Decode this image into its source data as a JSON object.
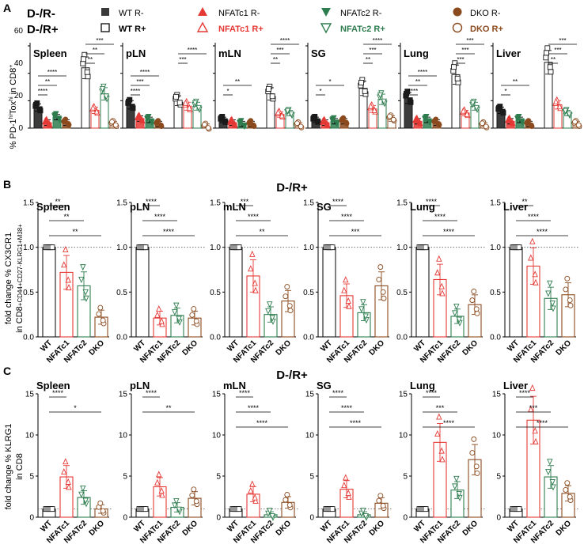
{
  "colors": {
    "wt": "#1a1a1a",
    "c1": "#e53935",
    "c2": "#2e7d4f",
    "dko": "#8b4a1e"
  },
  "panels": {
    "a": "A",
    "b": "B",
    "c": "C"
  },
  "legend": {
    "row_minus_label": "D-/R-",
    "row_plus_label": "D-/R+",
    "entries": [
      {
        "key": "wt",
        "minus": "WT R-",
        "plus": "WT R+"
      },
      {
        "key": "c1",
        "minus": "NFATc1 R-",
        "plus": "NFATc1 R+"
      },
      {
        "key": "c2",
        "minus": "NFATc2 R-",
        "plus": "NFATc2 R+"
      },
      {
        "key": "dko",
        "minus": "DKO R-",
        "plus": "DKO R+"
      }
    ]
  },
  "panel_a": {
    "ylabel_main": "% PD-1",
    "ylabel_sup1": "hi",
    "ylabel_mid": "Tox",
    "ylabel_sup2": "hi",
    "ylabel_end": " in CD8",
    "ylabel_sup3": "+",
    "yticks": [
      "0",
      "20",
      "40",
      "60"
    ]
  },
  "panel_b": {
    "header": "D-/R+",
    "ylabel_line1": "fold change % CX3CR1",
    "ylabel_line2": "in CD8",
    "ylabel_parts": "+CD44+CD27-KLRG1+M38+",
    "yticks": [
      "0.0",
      "0.5",
      "1.0",
      "1.5"
    ]
  },
  "panel_c": {
    "header": "D-/R+",
    "ylabel_line1": "fold change % KLRG1",
    "ylabel_line2": "in CD8",
    "yticks": [
      "0",
      "5",
      "10",
      "15"
    ]
  },
  "groups": [
    "WT",
    "NFATc1",
    "NFATc2",
    "DKO"
  ],
  "chart_data": [
    {
      "type": "bar",
      "panel": "A",
      "ylabel": "% PD-1hiToxhi in CD8+",
      "ylim": [
        0,
        60
      ],
      "facets": [
        {
          "title": "Spleen",
          "series": [
            {
              "name": "R-",
              "values": [
                15,
                4,
                8,
                4
              ]
            },
            {
              "name": "R+",
              "values": [
                44,
                13,
                25,
                3
              ]
            }
          ],
          "stars": [
            {
              "pair": "WT R- vs NFATc1 R-",
              "text": "****"
            },
            {
              "pair": "WT R- vs NFATc2 R-",
              "text": "**"
            },
            {
              "pair": "WT R- vs DKO R-",
              "text": "****"
            },
            {
              "pair": "WT R+ vs NFATc1 R+",
              "text": "**"
            },
            {
              "pair": "WT R+ vs NFATc2 R+",
              "text": "**"
            },
            {
              "pair": "WT R+ vs DKO R+",
              "text": "***"
            }
          ]
        },
        {
          "title": "pLN",
          "series": [
            {
              "name": "R-",
              "values": [
                17,
                7,
                6,
                3
              ]
            },
            {
              "name": "R+",
              "values": [
                20,
                16,
                16,
                1
              ]
            }
          ],
          "stars": [
            {
              "pair": "WT R- vs NFATc1 R-",
              "text": "****"
            },
            {
              "pair": "WT R- vs NFATc2 R-",
              "text": "***"
            },
            {
              "pair": "WT R- vs DKO R-",
              "text": "****"
            },
            {
              "pair": "WT R+ vs NFATc1 R+",
              "text": "***"
            },
            {
              "pair": "WT R+ vs DKO R+",
              "text": "****"
            }
          ]
        },
        {
          "title": "mLN",
          "series": [
            {
              "name": "R-",
              "values": [
                6,
                4,
                3,
                3
              ]
            },
            {
              "name": "R+",
              "values": [
                25,
                10,
                11,
                2
              ]
            }
          ],
          "stars": [
            {
              "pair": "WT R- vs NFATc1 R-",
              "text": "*"
            },
            {
              "pair": "WT R- vs DKO R-",
              "text": "**"
            },
            {
              "pair": "WT R+ vs NFATc1 R+",
              "text": "**"
            },
            {
              "pair": "WT R+ vs NFATc2 R+",
              "text": "***"
            },
            {
              "pair": "WT R+ vs DKO R+",
              "text": "****"
            }
          ]
        },
        {
          "title": "SG",
          "series": [
            {
              "name": "R-",
              "values": [
                6,
                4,
                5,
                5
              ]
            },
            {
              "name": "R+",
              "values": [
                29,
                14,
                21,
                7
              ]
            }
          ],
          "stars": [
            {
              "pair": "WT R- vs NFATc1 R-",
              "text": "*"
            },
            {
              "pair": "WT R- vs DKO R-",
              "text": "*"
            },
            {
              "pair": "WT R+ vs NFATc1 R+",
              "text": "**"
            },
            {
              "pair": "WT R+ vs NFATc2 R+",
              "text": "***"
            },
            {
              "pair": "WT R+ vs DKO R+",
              "text": "****"
            }
          ]
        },
        {
          "title": "Lung",
          "series": [
            {
              "name": "R-",
              "values": [
                22,
                5,
                6,
                4
              ]
            },
            {
              "name": "R+",
              "values": [
                39,
                11,
                16,
                2
              ]
            }
          ],
          "stars": [
            {
              "pair": "WT R- vs NFATc1 R-",
              "text": "****"
            },
            {
              "pair": "WT R- vs NFATc2 R-",
              "text": "**"
            },
            {
              "pair": "WT R- vs DKO R-",
              "text": "****"
            },
            {
              "pair": "WT R+ vs NFATc1 R+",
              "text": "***"
            },
            {
              "pair": "WT R+ vs NFATc2 R+",
              "text": "***"
            },
            {
              "pair": "WT R+ vs DKO R+",
              "text": "***"
            }
          ]
        },
        {
          "title": "Liver",
          "series": [
            {
              "name": "R-",
              "values": [
                13,
                5,
                6,
                3
              ]
            },
            {
              "name": "R+",
              "values": [
                48,
                17,
                11,
                3
              ]
            }
          ],
          "stars": [
            {
              "pair": "WT R- vs NFATc1 R-",
              "text": "*"
            },
            {
              "pair": "WT R- vs DKO R-",
              "text": "**"
            },
            {
              "pair": "WT R+ vs NFATc1 R+",
              "text": "**"
            },
            {
              "pair": "WT R+ vs NFATc2 R+",
              "text": "***"
            },
            {
              "pair": "WT R+ vs DKO R+",
              "text": "***"
            }
          ]
        }
      ]
    },
    {
      "type": "bar",
      "panel": "B",
      "title": "D-/R+",
      "ylabel": "fold change % CX3CR1+ in CD8+CD44+CD27-KLRG1+M38+",
      "ylim": [
        0,
        1.5
      ],
      "reference_line": 1.0,
      "categories": [
        "WT",
        "NFATc1",
        "NFATc2",
        "DKO"
      ],
      "facets": [
        {
          "title": "Spleen",
          "values": [
            1.0,
            0.72,
            0.57,
            0.22
          ],
          "stars": [
            "**",
            "**",
            "**"
          ]
        },
        {
          "title": "pLN",
          "values": [
            1.0,
            0.21,
            0.24,
            0.21
          ],
          "stars": [
            "****",
            "****",
            "****"
          ]
        },
        {
          "title": "mLN",
          "values": [
            1.0,
            0.68,
            0.25,
            0.4
          ],
          "stars": [
            "***",
            "****",
            "**"
          ]
        },
        {
          "title": "SG",
          "values": [
            1.0,
            0.46,
            0.27,
            0.57
          ],
          "stars": [
            "****",
            "****",
            "***"
          ]
        },
        {
          "title": "Lung",
          "values": [
            1.0,
            0.64,
            0.23,
            0.36
          ],
          "stars": [
            "****",
            "****",
            "****"
          ]
        },
        {
          "title": "Liver",
          "values": [
            1.0,
            0.79,
            0.43,
            0.47
          ],
          "stars": [
            "**",
            "****",
            "****"
          ]
        }
      ]
    },
    {
      "type": "bar",
      "panel": "C",
      "title": "D-/R+",
      "ylabel": "fold change % KLRG1+ in CD8+CD44+CD27-M38+",
      "ylim": [
        0,
        15
      ],
      "reference_line": 1.0,
      "categories": [
        "WT",
        "NFATc1",
        "NFATc2",
        "DKO"
      ],
      "facets": [
        {
          "title": "Spleen",
          "values": [
            1.0,
            4.9,
            2.4,
            1.0
          ],
          "stars": [
            "****",
            "*"
          ]
        },
        {
          "title": "pLN",
          "values": [
            1.0,
            3.7,
            1.2,
            2.3
          ],
          "stars": [
            "****",
            "**"
          ]
        },
        {
          "title": "mLN",
          "values": [
            1.0,
            2.8,
            0.3,
            1.8
          ],
          "stars": [
            "****",
            "****",
            "****"
          ]
        },
        {
          "title": "SG",
          "values": [
            1.0,
            3.4,
            0.3,
            1.7
          ],
          "stars": [
            "****",
            "****",
            "****"
          ]
        },
        {
          "title": "Lung",
          "values": [
            1.0,
            9.1,
            3.3,
            7.0
          ],
          "stars": [
            "****",
            "***",
            "****"
          ]
        },
        {
          "title": "Liver",
          "values": [
            1.0,
            11.8,
            4.9,
            2.9
          ],
          "stars": [
            "****",
            "***",
            "****"
          ]
        }
      ]
    }
  ]
}
